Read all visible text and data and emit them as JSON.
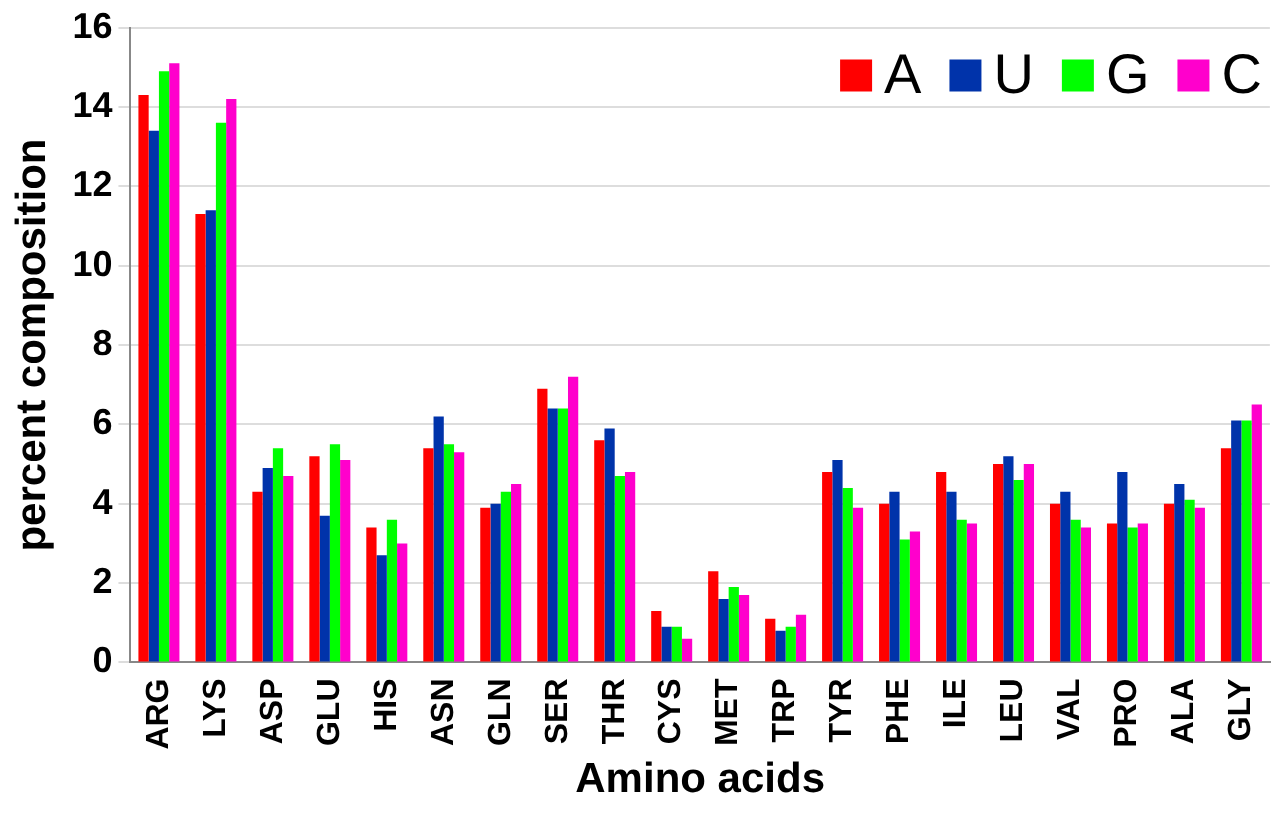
{
  "chart_data": {
    "type": "bar",
    "xlabel": "Amino acids",
    "ylabel": "percent composition",
    "categories": [
      "ARG",
      "LYS",
      "ASP",
      "GLU",
      "HIS",
      "ASN",
      "GLN",
      "SER",
      "THR",
      "CYS",
      "MET",
      "TRP",
      "TYR",
      "PHE",
      "ILE",
      "LEU",
      "VAL",
      "PRO",
      "ALA",
      "GLY"
    ],
    "series": [
      {
        "name": "A",
        "color": "#ff0000",
        "values": [
          14.3,
          11.3,
          4.3,
          5.2,
          3.4,
          5.4,
          3.9,
          6.9,
          5.6,
          1.3,
          2.3,
          1.1,
          4.8,
          4.0,
          4.8,
          5.0,
          4.0,
          3.5,
          4.0,
          5.4
        ]
      },
      {
        "name": "U",
        "color": "#0033aa",
        "values": [
          13.4,
          11.4,
          4.9,
          3.7,
          2.7,
          6.2,
          4.0,
          6.4,
          5.9,
          0.9,
          1.6,
          0.8,
          5.1,
          4.3,
          4.3,
          5.2,
          4.3,
          4.8,
          4.5,
          6.1
        ]
      },
      {
        "name": "G",
        "color": "#00ff00",
        "values": [
          14.9,
          13.6,
          5.4,
          5.5,
          3.6,
          5.5,
          4.3,
          6.4,
          4.7,
          0.9,
          1.9,
          0.9,
          4.4,
          3.1,
          3.6,
          4.6,
          3.6,
          3.4,
          4.1,
          6.1
        ]
      },
      {
        "name": "C",
        "color": "#ff00cc",
        "values": [
          15.1,
          14.2,
          4.7,
          5.1,
          3.0,
          5.3,
          4.5,
          7.2,
          4.8,
          0.6,
          1.7,
          1.2,
          3.9,
          3.3,
          3.5,
          5.0,
          3.4,
          3.5,
          3.9,
          6.5
        ]
      }
    ],
    "ylim": [
      0,
      16
    ],
    "yticks": [
      0,
      2,
      4,
      6,
      8,
      10,
      12,
      14,
      16
    ],
    "grid": "y",
    "legend": "top right"
  }
}
